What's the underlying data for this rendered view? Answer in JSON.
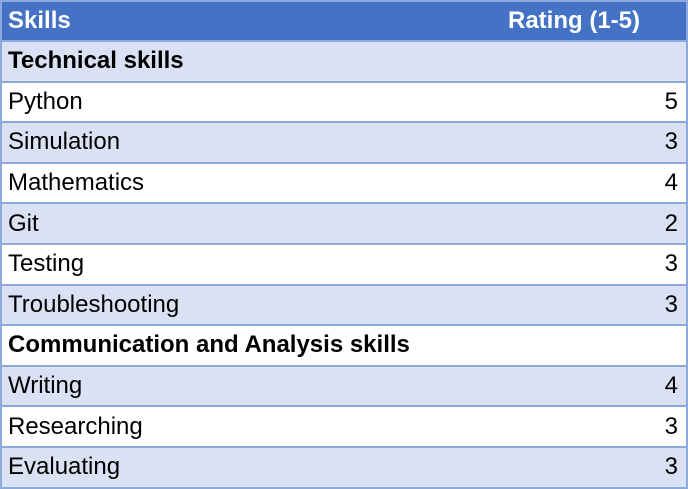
{
  "table": {
    "header": {
      "skill": "Skills",
      "rating": "Rating (1-5)"
    },
    "sections": [
      {
        "title": "Technical skills",
        "rows": [
          {
            "skill": "Python",
            "rating": "5"
          },
          {
            "skill": "Simulation",
            "rating": "3"
          },
          {
            "skill": "Mathematics",
            "rating": "4"
          },
          {
            "skill": "Git",
            "rating": "2"
          },
          {
            "skill": "Testing",
            "rating": "3"
          },
          {
            "skill": "Troubleshooting",
            "rating": "3"
          }
        ]
      },
      {
        "title": "Communication and Analysis skills",
        "rows": [
          {
            "skill": "Writing",
            "rating": "4"
          },
          {
            "skill": "Researching",
            "rating": "3"
          },
          {
            "skill": "Evaluating",
            "rating": "3"
          }
        ]
      }
    ]
  },
  "colors": {
    "header_bg": "#4472c4",
    "band_light": "#d9e1f2",
    "band_white": "#ffffff",
    "grid": "#8ea9db"
  }
}
